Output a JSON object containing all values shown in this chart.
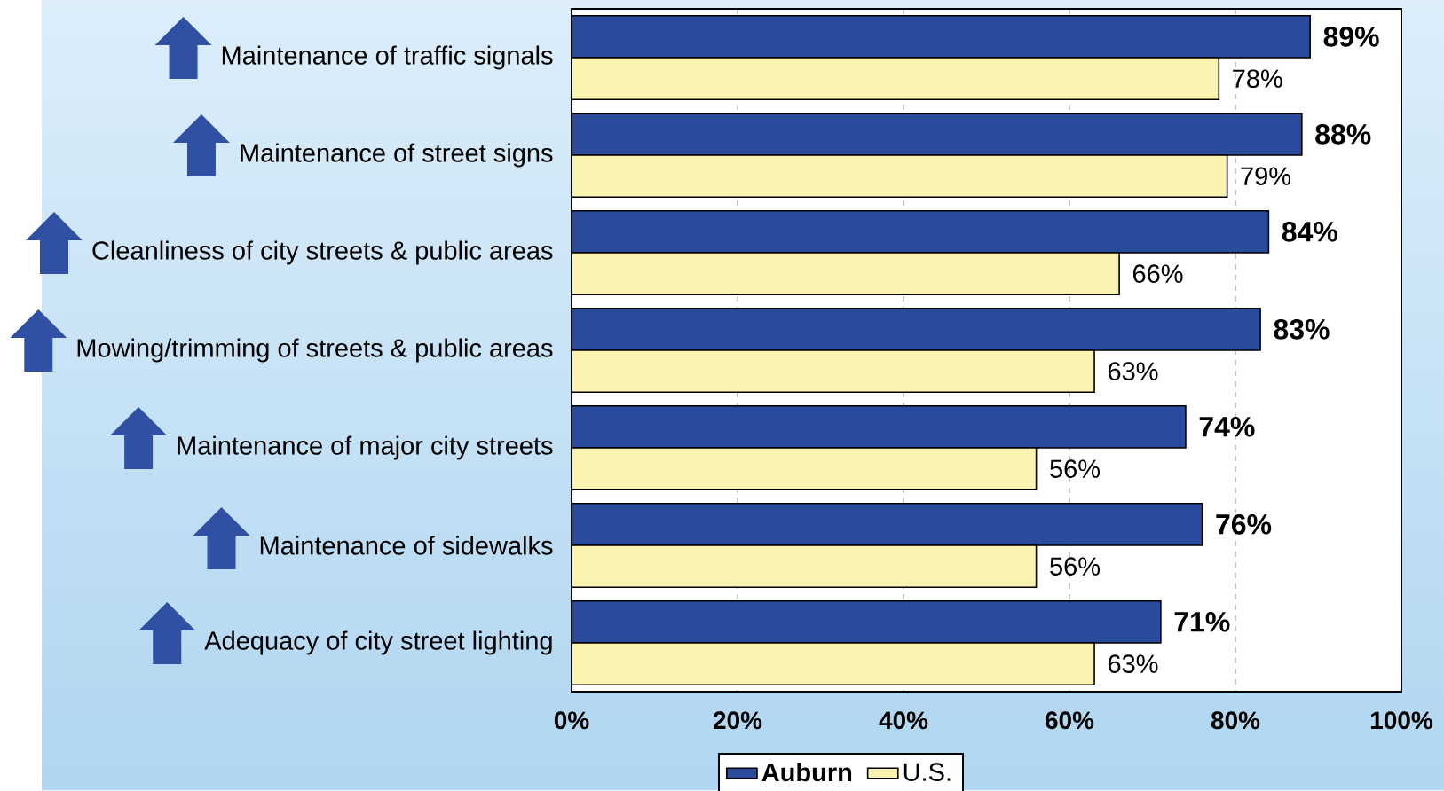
{
  "chart_data": {
    "type": "bar",
    "orientation": "horizontal",
    "categories": [
      "Maintenance of traffic signals",
      "Maintenance of street signs",
      "Cleanliness of city streets & public areas",
      "Mowing/trimming of streets & public areas",
      "Maintenance of major city streets",
      "Maintenance of sidewalks",
      "Adequacy of city street lighting"
    ],
    "series": [
      {
        "name": "Auburn",
        "color": "#2a4b9b",
        "values": [
          89,
          88,
          84,
          83,
          74,
          76,
          71
        ],
        "value_labels": [
          "89%",
          "88%",
          "84%",
          "83%",
          "74%",
          "76%",
          "71%"
        ]
      },
      {
        "name": "U.S.",
        "color": "#fbf3b0",
        "values": [
          78,
          79,
          66,
          63,
          56,
          56,
          63
        ],
        "value_labels": [
          "78%",
          "79%",
          "66%",
          "63%",
          "56%",
          "56%",
          "63%"
        ]
      }
    ],
    "xlim": [
      0,
      100
    ],
    "xticks": [
      {
        "value": 0,
        "label": "0%"
      },
      {
        "value": 20,
        "label": "20%"
      },
      {
        "value": 40,
        "label": "40%"
      },
      {
        "value": 60,
        "label": "60%"
      },
      {
        "value": 80,
        "label": "80%"
      },
      {
        "value": 100,
        "label": "100%"
      }
    ],
    "grid": "x",
    "legend": "bottom"
  }
}
